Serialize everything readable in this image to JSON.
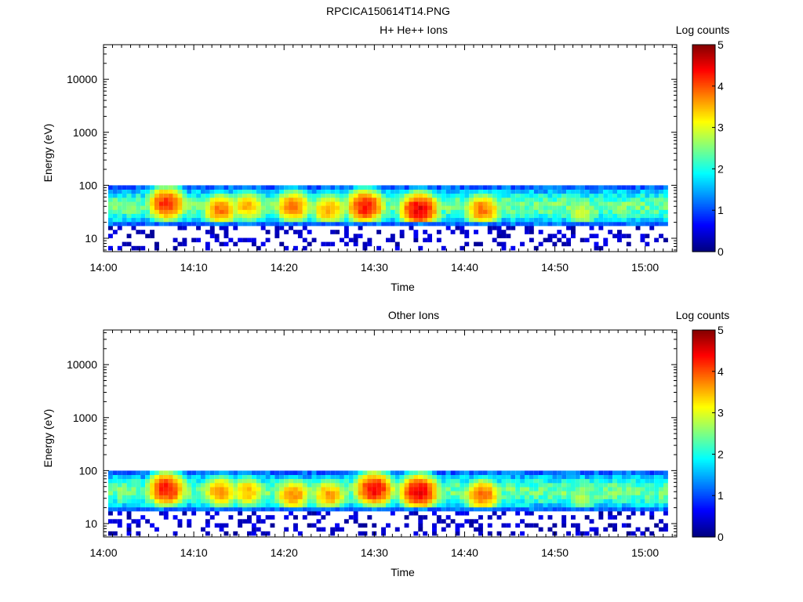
{
  "figure_title": "RPCICA150614T14.PNG",
  "chart_data": [
    {
      "type": "heatmap",
      "title": "H+ He++ Ions",
      "xlabel": "Time",
      "ylabel": "Energy (eV)",
      "x_ticks": [
        "14:00",
        "14:10",
        "14:20",
        "14:30",
        "14:40",
        "14:50",
        "15:00"
      ],
      "x_range_minutes": [
        0,
        63.5
      ],
      "y_scale": "log",
      "y_ticks": [
        "10",
        "100",
        "1000",
        "10000"
      ],
      "y_tick_values": [
        10,
        100,
        1000,
        10000
      ],
      "ylim": [
        5.6,
        45000
      ],
      "colorbar": {
        "label": "Log counts",
        "range": [
          0,
          5
        ],
        "ticks": [
          "0",
          "1",
          "2",
          "3",
          "4",
          "5"
        ]
      },
      "data_energy_range_ev": [
        6,
        100
      ],
      "peak_count_regions": [
        {
          "time": "14:07",
          "energy_ev": 45,
          "log_counts": 4.2
        },
        {
          "time": "14:13",
          "energy_ev": 35,
          "log_counts": 3.8
        },
        {
          "time": "14:16",
          "energy_ev": 40,
          "log_counts": 3.5
        },
        {
          "time": "14:21",
          "energy_ev": 40,
          "log_counts": 3.8
        },
        {
          "time": "14:25",
          "energy_ev": 35,
          "log_counts": 3.6
        },
        {
          "time": "14:29",
          "energy_ev": 40,
          "log_counts": 4.3
        },
        {
          "time": "14:35",
          "energy_ev": 35,
          "log_counts": 4.5
        },
        {
          "time": "14:42",
          "energy_ev": 35,
          "log_counts": 3.8
        },
        {
          "time": "14:53",
          "energy_ev": 30,
          "log_counts": 2.9
        }
      ]
    },
    {
      "type": "heatmap",
      "title": "Other Ions",
      "xlabel": "Time",
      "ylabel": "Energy (eV)",
      "x_ticks": [
        "14:00",
        "14:10",
        "14:20",
        "14:30",
        "14:40",
        "14:50",
        "15:00"
      ],
      "x_range_minutes": [
        0,
        63.5
      ],
      "y_scale": "log",
      "y_ticks": [
        "10",
        "100",
        "1000",
        "10000"
      ],
      "y_tick_values": [
        10,
        100,
        1000,
        10000
      ],
      "ylim": [
        5.6,
        45000
      ],
      "colorbar": {
        "label": "Log counts",
        "range": [
          0,
          5
        ],
        "ticks": [
          "0",
          "1",
          "2",
          "3",
          "4",
          "5"
        ]
      },
      "data_energy_range_ev": [
        6,
        100
      ],
      "peak_count_regions": [
        {
          "time": "14:07",
          "energy_ev": 45,
          "log_counts": 4.3
        },
        {
          "time": "14:13",
          "energy_ev": 40,
          "log_counts": 3.7
        },
        {
          "time": "14:16",
          "energy_ev": 40,
          "log_counts": 3.5
        },
        {
          "time": "14:21",
          "energy_ev": 35,
          "log_counts": 3.7
        },
        {
          "time": "14:25",
          "energy_ev": 35,
          "log_counts": 3.6
        },
        {
          "time": "14:30",
          "energy_ev": 45,
          "log_counts": 4.4
        },
        {
          "time": "14:35",
          "energy_ev": 40,
          "log_counts": 4.5
        },
        {
          "time": "14:42",
          "energy_ev": 35,
          "log_counts": 3.9
        },
        {
          "time": "14:53",
          "energy_ev": 30,
          "log_counts": 2.8
        }
      ]
    }
  ]
}
